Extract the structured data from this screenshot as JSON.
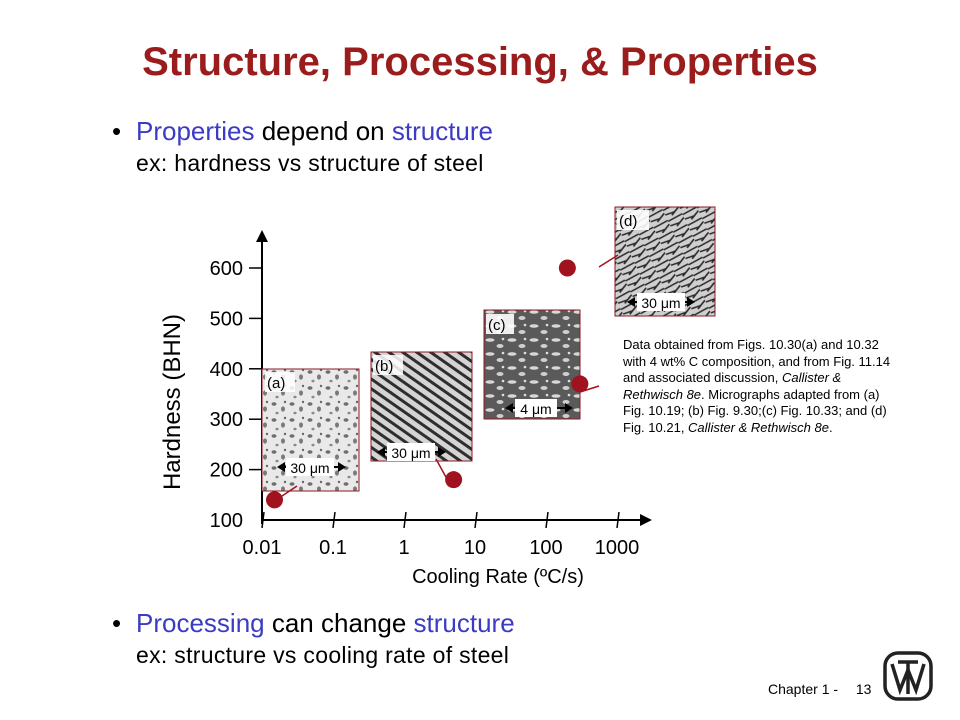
{
  "title": "Structure, Processing, & Properties",
  "bullet1": {
    "bullet": "•",
    "word1": "Properties",
    "mid": " depend on ",
    "word2": "structure",
    "sub": "ex:  hardness vs structure of steel"
  },
  "bullet2": {
    "bullet": "•",
    "word1": "Processing",
    "mid": " can change ",
    "word2": "structure",
    "sub": "ex:  structure vs cooling rate of steel"
  },
  "colors": {
    "title": "#9b1c1c",
    "highlight": "#3b3bc4",
    "marker": "#a0121e"
  },
  "chart_data": {
    "type": "scatter",
    "xscale": "log",
    "xlabel": "Cooling Rate (ºC/s)",
    "ylabel": "Hardness (BHN)",
    "xticks": [
      "0.01",
      "0.1",
      "1",
      "10",
      "100",
      "1000"
    ],
    "yticks": [
      "100",
      "200",
      "300",
      "400",
      "500",
      "600"
    ],
    "xlim": [
      0.01,
      1000
    ],
    "ylim": [
      100,
      600
    ],
    "points": [
      {
        "label": "(a)",
        "x": 0.015,
        "y": 140,
        "scale_bar": "30 μm"
      },
      {
        "label": "(b)",
        "x": 5,
        "y": 180,
        "scale_bar": "30 μm"
      },
      {
        "label": "(c)",
        "x": 300,
        "y": 370,
        "scale_bar": "4 μm"
      },
      {
        "label": "(d)",
        "x": 200,
        "y": 600,
        "scale_bar": "30 μm"
      }
    ]
  },
  "note": {
    "line1": "Data obtained from Figs. 10.30(a) and 10.32 with 4 wt% C composition, and from Fig. 11.14 and associated discussion, ",
    "italic1": "Callister & Rethwisch 8e",
    "line2": ". Micrographs adapted from (a) Fig. 10.19; (b) Fig. 9.30;(c) Fig. 10.33; and (d) Fig. 10.21, ",
    "italic2": "Callister & Rethwisch 8e",
    "line3": "."
  },
  "footer": {
    "chapter": "Chapter 1 -",
    "page": "13"
  }
}
